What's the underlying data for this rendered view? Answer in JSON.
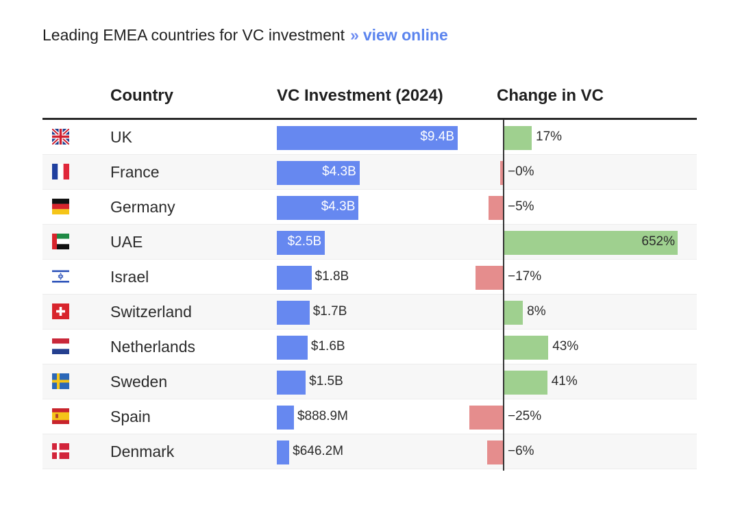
{
  "header": {
    "title": "Leading EMEA countries for VC investment",
    "separator": "»",
    "link_label": "view online"
  },
  "chart_data": {
    "type": "table",
    "columns": [
      "Country",
      "VC Investment (2024)",
      "Change in VC"
    ],
    "investment_max": 9.4,
    "change_max": 652,
    "rows": [
      {
        "flag": "uk-flag-icon",
        "country": "UK",
        "investment_billion": 9.4,
        "investment_label": "$9.4B",
        "change_pct": 17,
        "change_label": "17%"
      },
      {
        "flag": "france-flag-icon",
        "country": "France",
        "investment_billion": 4.3,
        "investment_label": "$4.3B",
        "change_pct": -0.3,
        "change_label": "−0%"
      },
      {
        "flag": "germany-flag-icon",
        "country": "Germany",
        "investment_billion": 4.25,
        "investment_label": "$4.3B",
        "change_pct": -5,
        "change_label": "−5%"
      },
      {
        "flag": "uae-flag-icon",
        "country": "UAE",
        "investment_billion": 2.5,
        "investment_label": "$2.5B",
        "change_pct": 652,
        "change_label": "652%"
      },
      {
        "flag": "israel-flag-icon",
        "country": "Israel",
        "investment_billion": 1.8,
        "investment_label": "$1.8B",
        "change_pct": -17,
        "change_label": "−17%"
      },
      {
        "flag": "switzerland-flag-icon",
        "country": "Switzerland",
        "investment_billion": 1.7,
        "investment_label": "$1.7B",
        "change_pct": 8,
        "change_label": "8%"
      },
      {
        "flag": "netherlands-flag-icon",
        "country": "Netherlands",
        "investment_billion": 1.6,
        "investment_label": "$1.6B",
        "change_pct": 43,
        "change_label": "43%"
      },
      {
        "flag": "sweden-flag-icon",
        "country": "Sweden",
        "investment_billion": 1.5,
        "investment_label": "$1.5B",
        "change_pct": 41,
        "change_label": "41%"
      },
      {
        "flag": "spain-flag-icon",
        "country": "Spain",
        "investment_billion": 0.8889,
        "investment_label": "$888.9M",
        "change_pct": -25,
        "change_label": "−25%"
      },
      {
        "flag": "denmark-flag-icon",
        "country": "Denmark",
        "investment_billion": 0.6462,
        "investment_label": "$646.2M",
        "change_pct": -6,
        "change_label": "−6%"
      }
    ],
    "colors": {
      "investment_bar": "#6688f0",
      "positive_change": "#9fd08f",
      "negative_change": "#e58d8d"
    }
  }
}
